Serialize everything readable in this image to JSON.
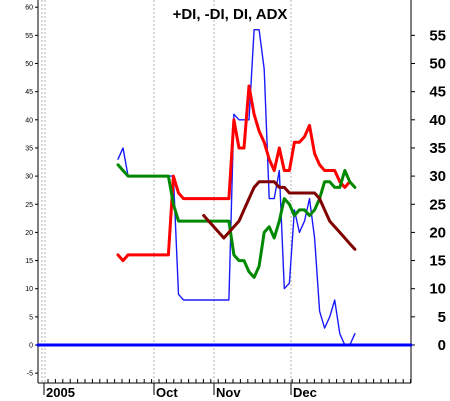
{
  "chart_data": {
    "type": "line",
    "title": "+DI, -DI, DI, ADX",
    "xlabel": "",
    "ylabel": "",
    "ylim": [
      -6,
      62
    ],
    "grid": true,
    "x_tick_labels": [
      "2005",
      "Oct",
      "Nov",
      "Dec"
    ],
    "y_left_ticks": [
      60,
      55,
      50,
      45,
      40,
      35,
      30,
      25,
      20,
      15,
      10,
      5,
      0,
      -5
    ],
    "y_right_ticks": [
      55,
      50,
      45,
      40,
      35,
      30,
      25,
      20,
      15,
      10,
      5,
      0
    ],
    "series": [
      {
        "color": "#1a1aff",
        "values": [
          [
            0,
            33
          ],
          [
            1,
            35
          ],
          [
            2,
            30
          ],
          [
            3,
            30
          ],
          [
            4,
            30
          ],
          [
            5,
            30
          ],
          [
            6,
            30
          ],
          [
            7,
            30
          ],
          [
            8,
            30
          ],
          [
            9,
            30
          ],
          [
            10,
            30
          ],
          [
            11,
            30
          ],
          [
            12,
            9
          ],
          [
            13,
            8
          ],
          [
            14,
            8
          ],
          [
            15,
            8
          ],
          [
            16,
            8
          ],
          [
            17,
            8
          ],
          [
            18,
            8
          ],
          [
            19,
            8
          ],
          [
            20,
            8
          ],
          [
            21,
            8
          ],
          [
            22,
            8
          ],
          [
            23,
            41
          ],
          [
            24,
            40
          ],
          [
            25,
            40
          ],
          [
            26,
            40
          ],
          [
            27,
            56
          ],
          [
            28,
            56
          ],
          [
            29,
            49
          ],
          [
            30,
            26
          ],
          [
            31,
            26
          ],
          [
            32,
            31
          ],
          [
            33,
            10
          ],
          [
            34,
            11
          ],
          [
            35,
            24
          ],
          [
            36,
            20
          ],
          [
            37,
            22
          ],
          [
            38,
            26
          ],
          [
            39,
            19
          ],
          [
            40,
            6
          ],
          [
            41,
            3
          ],
          [
            42,
            5
          ],
          [
            43,
            8
          ],
          [
            44,
            2
          ],
          [
            45,
            0
          ],
          [
            46,
            0
          ],
          [
            47,
            2
          ]
        ]
      },
      {
        "color": "#ff0000",
        "values": [
          [
            0,
            16
          ],
          [
            1,
            15
          ],
          [
            2,
            16
          ],
          [
            3,
            16
          ],
          [
            4,
            16
          ],
          [
            5,
            16
          ],
          [
            6,
            16
          ],
          [
            7,
            16
          ],
          [
            8,
            16
          ],
          [
            9,
            16
          ],
          [
            10,
            16
          ],
          [
            11,
            30
          ],
          [
            12,
            27
          ],
          [
            13,
            26
          ],
          [
            14,
            26
          ],
          [
            15,
            26
          ],
          [
            16,
            26
          ],
          [
            17,
            26
          ],
          [
            18,
            26
          ],
          [
            19,
            26
          ],
          [
            20,
            26
          ],
          [
            21,
            26
          ],
          [
            22,
            26
          ],
          [
            23,
            40
          ],
          [
            24,
            35
          ],
          [
            25,
            35
          ],
          [
            26,
            46
          ],
          [
            27,
            41
          ],
          [
            28,
            38
          ],
          [
            29,
            36
          ],
          [
            30,
            33
          ],
          [
            31,
            31
          ],
          [
            32,
            35
          ],
          [
            33,
            31
          ],
          [
            34,
            31
          ],
          [
            35,
            36
          ],
          [
            36,
            36
          ],
          [
            37,
            37
          ],
          [
            38,
            39
          ],
          [
            39,
            34
          ],
          [
            40,
            32
          ],
          [
            41,
            31
          ],
          [
            42,
            31
          ],
          [
            43,
            31
          ],
          [
            44,
            29
          ],
          [
            45,
            28
          ],
          [
            46,
            29
          ]
        ]
      },
      {
        "color": "#008800",
        "values": [
          [
            0,
            32
          ],
          [
            1,
            31
          ],
          [
            2,
            30
          ],
          [
            3,
            30
          ],
          [
            4,
            30
          ],
          [
            5,
            30
          ],
          [
            6,
            30
          ],
          [
            7,
            30
          ],
          [
            8,
            30
          ],
          [
            9,
            30
          ],
          [
            10,
            30
          ],
          [
            11,
            25
          ],
          [
            12,
            22
          ],
          [
            13,
            22
          ],
          [
            14,
            22
          ],
          [
            15,
            22
          ],
          [
            16,
            22
          ],
          [
            17,
            22
          ],
          [
            18,
            22
          ],
          [
            19,
            22
          ],
          [
            20,
            22
          ],
          [
            21,
            22
          ],
          [
            22,
            22
          ],
          [
            23,
            16
          ],
          [
            24,
            15
          ],
          [
            25,
            15
          ],
          [
            26,
            13
          ],
          [
            27,
            12
          ],
          [
            28,
            14
          ],
          [
            29,
            20
          ],
          [
            30,
            21
          ],
          [
            31,
            19
          ],
          [
            32,
            22
          ],
          [
            33,
            26
          ],
          [
            34,
            25
          ],
          [
            35,
            23
          ],
          [
            36,
            24
          ],
          [
            37,
            24
          ],
          [
            38,
            23
          ],
          [
            39,
            24
          ],
          [
            40,
            26
          ],
          [
            41,
            29
          ],
          [
            42,
            29
          ],
          [
            43,
            28
          ],
          [
            44,
            28
          ],
          [
            45,
            31
          ],
          [
            46,
            29
          ],
          [
            47,
            28
          ]
        ]
      },
      {
        "color": "#800000",
        "values": [
          [
            17,
            23
          ],
          [
            18,
            22
          ],
          [
            19,
            21
          ],
          [
            20,
            20
          ],
          [
            21,
            19
          ],
          [
            22,
            20
          ],
          [
            23,
            21
          ],
          [
            24,
            22
          ],
          [
            25,
            24
          ],
          [
            26,
            26
          ],
          [
            27,
            28
          ],
          [
            28,
            29
          ],
          [
            29,
            29
          ],
          [
            30,
            29
          ],
          [
            31,
            29
          ],
          [
            32,
            28
          ],
          [
            33,
            28
          ],
          [
            34,
            27
          ],
          [
            35,
            27
          ],
          [
            36,
            27
          ],
          [
            37,
            27
          ],
          [
            38,
            27
          ],
          [
            39,
            27
          ],
          [
            40,
            26
          ],
          [
            41,
            24
          ],
          [
            42,
            22
          ],
          [
            43,
            21
          ],
          [
            44,
            20
          ],
          [
            45,
            19
          ],
          [
            46,
            18
          ],
          [
            47,
            17
          ]
        ]
      },
      {
        "color": "#0000ff",
        "values": [
          [
            -20,
            0
          ],
          [
            100,
            0
          ]
        ]
      }
    ]
  }
}
